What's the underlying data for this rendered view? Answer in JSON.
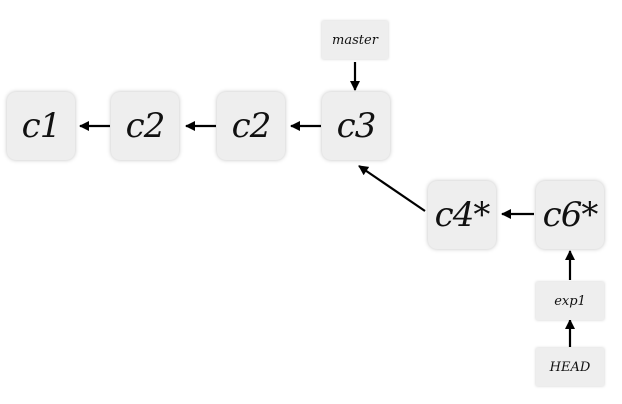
{
  "commits": [
    {
      "id": "n1",
      "label": "c1"
    },
    {
      "id": "n2",
      "label": "c2"
    },
    {
      "id": "n3",
      "label": "c2"
    },
    {
      "id": "n4",
      "label": "c3"
    },
    {
      "id": "n5",
      "label": "c4*"
    },
    {
      "id": "n6",
      "label": "c6*"
    }
  ],
  "refs": [
    {
      "id": "master",
      "label": "master",
      "points_to": "c3"
    },
    {
      "id": "exp1",
      "label": "exp1",
      "points_to": "c6*"
    },
    {
      "id": "head",
      "label": "HEAD",
      "points_to": "exp1"
    }
  ],
  "edges": [
    {
      "from": "c2",
      "to": "c1"
    },
    {
      "from": "c2",
      "to": "c2"
    },
    {
      "from": "c3",
      "to": "c2"
    },
    {
      "from": "c4*",
      "to": "c3"
    },
    {
      "from": "c6*",
      "to": "c4*"
    },
    {
      "from": "master",
      "to": "c3"
    },
    {
      "from": "exp1",
      "to": "c6*"
    },
    {
      "from": "HEAD",
      "to": "exp1"
    }
  ],
  "colors": {
    "node_fill": "#eeeeee",
    "arrow": "#000000",
    "text": "#111111"
  }
}
